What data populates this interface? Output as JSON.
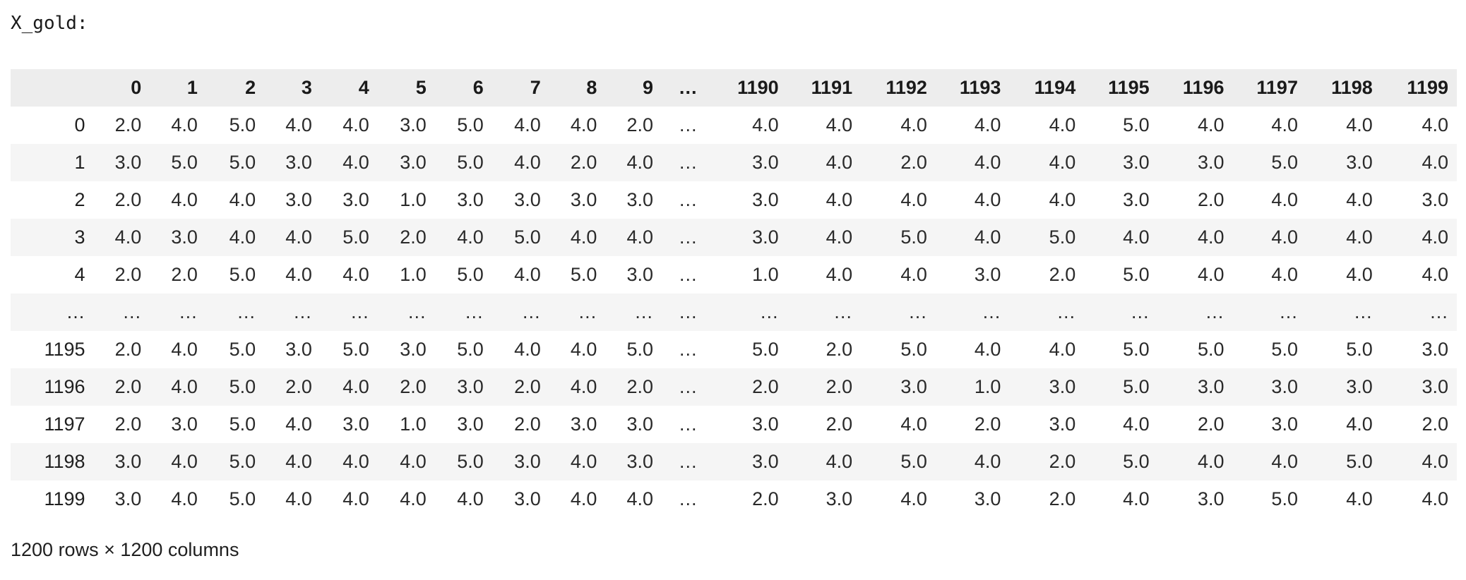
{
  "output": {
    "label": "X_gold:",
    "shape_text": "1200 rows × 1200 columns"
  },
  "dataframe": {
    "index_header": "",
    "columns": [
      "0",
      "1",
      "2",
      "3",
      "4",
      "5",
      "6",
      "7",
      "8",
      "9",
      "…",
      "1190",
      "1191",
      "1192",
      "1193",
      "1194",
      "1195",
      "1196",
      "1197",
      "1198",
      "1199"
    ],
    "rows": [
      {
        "index": "0",
        "cells": [
          "2.0",
          "4.0",
          "5.0",
          "4.0",
          "4.0",
          "3.0",
          "5.0",
          "4.0",
          "4.0",
          "2.0",
          "…",
          "4.0",
          "4.0",
          "4.0",
          "4.0",
          "4.0",
          "5.0",
          "4.0",
          "4.0",
          "4.0",
          "4.0"
        ]
      },
      {
        "index": "1",
        "cells": [
          "3.0",
          "5.0",
          "5.0",
          "3.0",
          "4.0",
          "3.0",
          "5.0",
          "4.0",
          "2.0",
          "4.0",
          "…",
          "3.0",
          "4.0",
          "2.0",
          "4.0",
          "4.0",
          "3.0",
          "3.0",
          "5.0",
          "3.0",
          "4.0"
        ]
      },
      {
        "index": "2",
        "cells": [
          "2.0",
          "4.0",
          "4.0",
          "3.0",
          "3.0",
          "1.0",
          "3.0",
          "3.0",
          "3.0",
          "3.0",
          "…",
          "3.0",
          "4.0",
          "4.0",
          "4.0",
          "4.0",
          "3.0",
          "2.0",
          "4.0",
          "4.0",
          "3.0"
        ]
      },
      {
        "index": "3",
        "cells": [
          "4.0",
          "3.0",
          "4.0",
          "4.0",
          "5.0",
          "2.0",
          "4.0",
          "5.0",
          "4.0",
          "4.0",
          "…",
          "3.0",
          "4.0",
          "5.0",
          "4.0",
          "5.0",
          "4.0",
          "4.0",
          "4.0",
          "4.0",
          "4.0"
        ]
      },
      {
        "index": "4",
        "cells": [
          "2.0",
          "2.0",
          "5.0",
          "4.0",
          "4.0",
          "1.0",
          "5.0",
          "4.0",
          "5.0",
          "3.0",
          "…",
          "1.0",
          "4.0",
          "4.0",
          "3.0",
          "2.0",
          "5.0",
          "4.0",
          "4.0",
          "4.0",
          "4.0"
        ]
      },
      {
        "index": "…",
        "cells": [
          "…",
          "…",
          "…",
          "…",
          "…",
          "…",
          "…",
          "…",
          "…",
          "…",
          "…",
          "…",
          "…",
          "…",
          "…",
          "…",
          "…",
          "…",
          "…",
          "…",
          "…"
        ]
      },
      {
        "index": "1195",
        "cells": [
          "2.0",
          "4.0",
          "5.0",
          "3.0",
          "5.0",
          "3.0",
          "5.0",
          "4.0",
          "4.0",
          "5.0",
          "…",
          "5.0",
          "2.0",
          "5.0",
          "4.0",
          "4.0",
          "5.0",
          "5.0",
          "5.0",
          "5.0",
          "3.0"
        ]
      },
      {
        "index": "1196",
        "cells": [
          "2.0",
          "4.0",
          "5.0",
          "2.0",
          "4.0",
          "2.0",
          "3.0",
          "2.0",
          "4.0",
          "2.0",
          "…",
          "2.0",
          "2.0",
          "3.0",
          "1.0",
          "3.0",
          "5.0",
          "3.0",
          "3.0",
          "3.0",
          "3.0"
        ]
      },
      {
        "index": "1197",
        "cells": [
          "2.0",
          "3.0",
          "5.0",
          "4.0",
          "3.0",
          "1.0",
          "3.0",
          "2.0",
          "3.0",
          "3.0",
          "…",
          "3.0",
          "2.0",
          "4.0",
          "2.0",
          "3.0",
          "4.0",
          "2.0",
          "3.0",
          "4.0",
          "2.0"
        ]
      },
      {
        "index": "1198",
        "cells": [
          "3.0",
          "4.0",
          "5.0",
          "4.0",
          "4.0",
          "4.0",
          "5.0",
          "3.0",
          "4.0",
          "3.0",
          "…",
          "3.0",
          "4.0",
          "5.0",
          "4.0",
          "2.0",
          "5.0",
          "4.0",
          "4.0",
          "5.0",
          "4.0"
        ]
      },
      {
        "index": "1199",
        "cells": [
          "3.0",
          "4.0",
          "5.0",
          "4.0",
          "4.0",
          "4.0",
          "4.0",
          "3.0",
          "4.0",
          "4.0",
          "…",
          "2.0",
          "3.0",
          "4.0",
          "3.0",
          "2.0",
          "4.0",
          "3.0",
          "5.0",
          "4.0",
          "4.0"
        ]
      }
    ]
  }
}
